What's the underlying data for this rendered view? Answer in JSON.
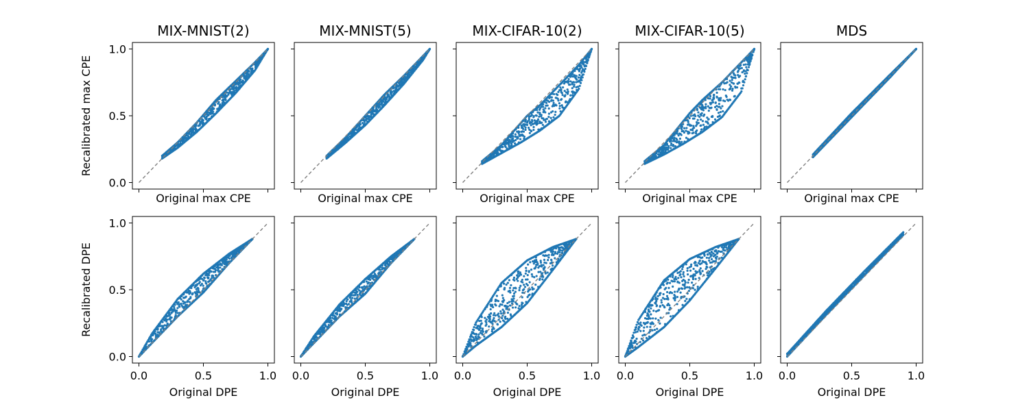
{
  "colors": {
    "points": "#1f77b4",
    "reference_line": "#808080",
    "frame": "#000000"
  },
  "chart_data": [
    {
      "type": "scatter",
      "title": "MIX-MNIST(2)",
      "xlabel": "Original max CPE",
      "ylabel": "Recalibrated max CPE",
      "xlim": [
        0,
        1
      ],
      "ylim": [
        0,
        1
      ],
      "xticks": [
        "0.0",
        "0.5",
        "1.0"
      ],
      "yticks": [
        "0.0",
        "0.5",
        "1.0"
      ],
      "reference_line": "y = x",
      "x_range": [
        0.18,
        1.0
      ],
      "y_range": [
        0.18,
        1.0
      ],
      "band_lower": [
        [
          0.18,
          0.18
        ],
        [
          0.3,
          0.26
        ],
        [
          0.45,
          0.38
        ],
        [
          0.6,
          0.52
        ],
        [
          0.75,
          0.67
        ],
        [
          0.9,
          0.84
        ],
        [
          1.0,
          1.0
        ]
      ],
      "band_upper": [
        [
          0.18,
          0.2
        ],
        [
          0.3,
          0.3
        ],
        [
          0.45,
          0.45
        ],
        [
          0.6,
          0.62
        ],
        [
          0.75,
          0.76
        ],
        [
          0.9,
          0.9
        ],
        [
          1.0,
          1.0
        ]
      ]
    },
    {
      "type": "scatter",
      "title": "MIX-MNIST(5)",
      "xlabel": "Original max CPE",
      "xlim": [
        0,
        1
      ],
      "ylim": [
        0,
        1
      ],
      "xticks": [
        "0.0",
        "0.5",
        "1.0"
      ],
      "yticks": [
        "0.0",
        "0.5",
        "1.0"
      ],
      "reference_line": "y = x",
      "x_range": [
        0.2,
        1.0
      ],
      "y_range": [
        0.18,
        1.0
      ],
      "band_lower": [
        [
          0.2,
          0.18
        ],
        [
          0.35,
          0.3
        ],
        [
          0.5,
          0.43
        ],
        [
          0.65,
          0.58
        ],
        [
          0.8,
          0.74
        ],
        [
          0.95,
          0.92
        ],
        [
          1.0,
          1.0
        ]
      ],
      "band_upper": [
        [
          0.2,
          0.2
        ],
        [
          0.35,
          0.34
        ],
        [
          0.5,
          0.5
        ],
        [
          0.65,
          0.66
        ],
        [
          0.8,
          0.8
        ],
        [
          0.95,
          0.95
        ],
        [
          1.0,
          1.0
        ]
      ]
    },
    {
      "type": "scatter",
      "title": "MIX-CIFAR-10(2)",
      "xlabel": "Original max CPE",
      "xlim": [
        0,
        1
      ],
      "ylim": [
        0,
        1
      ],
      "xticks": [
        "0.0",
        "0.5",
        "1.0"
      ],
      "yticks": [
        "0.0",
        "0.5",
        "1.0"
      ],
      "reference_line": "y = x",
      "x_range": [
        0.15,
        1.0
      ],
      "y_range": [
        0.14,
        1.0
      ],
      "band_lower": [
        [
          0.15,
          0.14
        ],
        [
          0.3,
          0.22
        ],
        [
          0.45,
          0.3
        ],
        [
          0.6,
          0.39
        ],
        [
          0.75,
          0.5
        ],
        [
          0.9,
          0.7
        ],
        [
          1.0,
          1.0
        ]
      ],
      "band_upper": [
        [
          0.15,
          0.16
        ],
        [
          0.3,
          0.28
        ],
        [
          0.5,
          0.5
        ],
        [
          0.6,
          0.58
        ],
        [
          0.75,
          0.73
        ],
        [
          0.9,
          0.88
        ],
        [
          1.0,
          1.0
        ]
      ]
    },
    {
      "type": "scatter",
      "title": "MIX-CIFAR-10(5)",
      "xlabel": "Original max CPE",
      "xlim": [
        0,
        1
      ],
      "ylim": [
        0,
        1
      ],
      "xticks": [
        "0.0",
        "0.5",
        "1.0"
      ],
      "yticks": [
        "0.0",
        "0.5",
        "1.0"
      ],
      "reference_line": "y = x",
      "x_range": [
        0.15,
        1.0
      ],
      "y_range": [
        0.14,
        1.0
      ],
      "band_lower": [
        [
          0.15,
          0.14
        ],
        [
          0.3,
          0.21
        ],
        [
          0.45,
          0.29
        ],
        [
          0.6,
          0.38
        ],
        [
          0.75,
          0.49
        ],
        [
          0.9,
          0.68
        ],
        [
          1.0,
          1.0
        ]
      ],
      "band_upper": [
        [
          0.15,
          0.16
        ],
        [
          0.3,
          0.28
        ],
        [
          0.5,
          0.52
        ],
        [
          0.6,
          0.62
        ],
        [
          0.75,
          0.75
        ],
        [
          0.9,
          0.9
        ],
        [
          1.0,
          1.0
        ]
      ]
    },
    {
      "type": "scatter",
      "title": "MDS",
      "xlabel": "Original max CPE",
      "xlim": [
        0,
        1
      ],
      "ylim": [
        0,
        1
      ],
      "xticks": [
        "0.0",
        "0.5",
        "1.0"
      ],
      "yticks": [
        "0.0",
        "0.5",
        "1.0"
      ],
      "reference_line": "y = x",
      "x_range": [
        0.2,
        1.0
      ],
      "y_range": [
        0.19,
        1.0
      ],
      "band_lower": [
        [
          0.2,
          0.19
        ],
        [
          0.5,
          0.49
        ],
        [
          0.8,
          0.79
        ],
        [
          1.0,
          1.0
        ]
      ],
      "band_upper": [
        [
          0.2,
          0.21
        ],
        [
          0.5,
          0.52
        ],
        [
          0.8,
          0.81
        ],
        [
          1.0,
          1.0
        ]
      ]
    },
    {
      "type": "scatter",
      "xlabel": "Original DPE",
      "ylabel": "Recalibrated DPE",
      "xlim": [
        0,
        1
      ],
      "ylim": [
        0,
        1
      ],
      "xticks": [
        "0.0",
        "0.5",
        "1.0"
      ],
      "yticks": [
        "0.0",
        "0.5",
        "1.0"
      ],
      "reference_line": "y = x",
      "x_range": [
        0.0,
        0.88
      ],
      "y_range": [
        0.0,
        0.88
      ],
      "band_lower": [
        [
          0.0,
          0.0
        ],
        [
          0.1,
          0.1
        ],
        [
          0.3,
          0.3
        ],
        [
          0.5,
          0.48
        ],
        [
          0.7,
          0.7
        ],
        [
          0.88,
          0.88
        ]
      ],
      "band_upper": [
        [
          0.0,
          0.0
        ],
        [
          0.1,
          0.17
        ],
        [
          0.3,
          0.43
        ],
        [
          0.5,
          0.62
        ],
        [
          0.7,
          0.77
        ],
        [
          0.88,
          0.88
        ]
      ]
    },
    {
      "type": "scatter",
      "xlabel": "Original DPE",
      "xlim": [
        0,
        1
      ],
      "ylim": [
        0,
        1
      ],
      "xticks": [
        "0.0",
        "0.5",
        "1.0"
      ],
      "yticks": [
        "0.0",
        "0.5",
        "1.0"
      ],
      "reference_line": "y = x",
      "x_range": [
        0.0,
        0.88
      ],
      "y_range": [
        0.0,
        0.88
      ],
      "band_lower": [
        [
          0.0,
          0.0
        ],
        [
          0.1,
          0.1
        ],
        [
          0.3,
          0.3
        ],
        [
          0.5,
          0.47
        ],
        [
          0.7,
          0.7
        ],
        [
          0.88,
          0.88
        ]
      ],
      "band_upper": [
        [
          0.0,
          0.0
        ],
        [
          0.1,
          0.15
        ],
        [
          0.3,
          0.39
        ],
        [
          0.5,
          0.58
        ],
        [
          0.7,
          0.75
        ],
        [
          0.88,
          0.88
        ]
      ]
    },
    {
      "type": "scatter",
      "xlabel": "Original DPE",
      "xlim": [
        0,
        1
      ],
      "ylim": [
        0,
        1
      ],
      "xticks": [
        "0.0",
        "0.5",
        "1.0"
      ],
      "yticks": [
        "0.0",
        "0.5",
        "1.0"
      ],
      "reference_line": "y = x",
      "x_range": [
        0.0,
        0.88
      ],
      "y_range": [
        0.0,
        0.88
      ],
      "band_lower": [
        [
          0.0,
          0.0
        ],
        [
          0.1,
          0.08
        ],
        [
          0.3,
          0.22
        ],
        [
          0.5,
          0.4
        ],
        [
          0.7,
          0.65
        ],
        [
          0.88,
          0.88
        ]
      ],
      "band_upper": [
        [
          0.0,
          0.0
        ],
        [
          0.1,
          0.25
        ],
        [
          0.3,
          0.55
        ],
        [
          0.5,
          0.72
        ],
        [
          0.7,
          0.82
        ],
        [
          0.88,
          0.88
        ]
      ]
    },
    {
      "type": "scatter",
      "xlabel": "Original DPE",
      "xlim": [
        0,
        1
      ],
      "ylim": [
        0,
        1
      ],
      "xticks": [
        "0.0",
        "0.5",
        "1.0"
      ],
      "yticks": [
        "0.0",
        "0.5",
        "1.0"
      ],
      "reference_line": "y = x",
      "x_range": [
        0.0,
        0.88
      ],
      "y_range": [
        0.0,
        0.88
      ],
      "band_lower": [
        [
          0.0,
          0.0
        ],
        [
          0.1,
          0.07
        ],
        [
          0.3,
          0.22
        ],
        [
          0.5,
          0.42
        ],
        [
          0.7,
          0.66
        ],
        [
          0.88,
          0.88
        ]
      ],
      "band_upper": [
        [
          0.0,
          0.0
        ],
        [
          0.1,
          0.27
        ],
        [
          0.3,
          0.57
        ],
        [
          0.5,
          0.73
        ],
        [
          0.7,
          0.82
        ],
        [
          0.88,
          0.88
        ]
      ]
    },
    {
      "type": "scatter",
      "xlabel": "Original DPE",
      "xlim": [
        0,
        1
      ],
      "ylim": [
        0,
        1
      ],
      "xticks": [
        "0.0",
        "0.5",
        "1.0"
      ],
      "yticks": [
        "0.0",
        "0.5",
        "1.0"
      ],
      "reference_line": "y = x",
      "x_range": [
        0.0,
        0.9
      ],
      "y_range": [
        0.0,
        0.92
      ],
      "band_lower": [
        [
          0.0,
          0.0
        ],
        [
          0.3,
          0.31
        ],
        [
          0.6,
          0.61
        ],
        [
          0.9,
          0.91
        ]
      ],
      "band_upper": [
        [
          0.0,
          0.02
        ],
        [
          0.3,
          0.34
        ],
        [
          0.6,
          0.64
        ],
        [
          0.9,
          0.93
        ]
      ]
    }
  ]
}
